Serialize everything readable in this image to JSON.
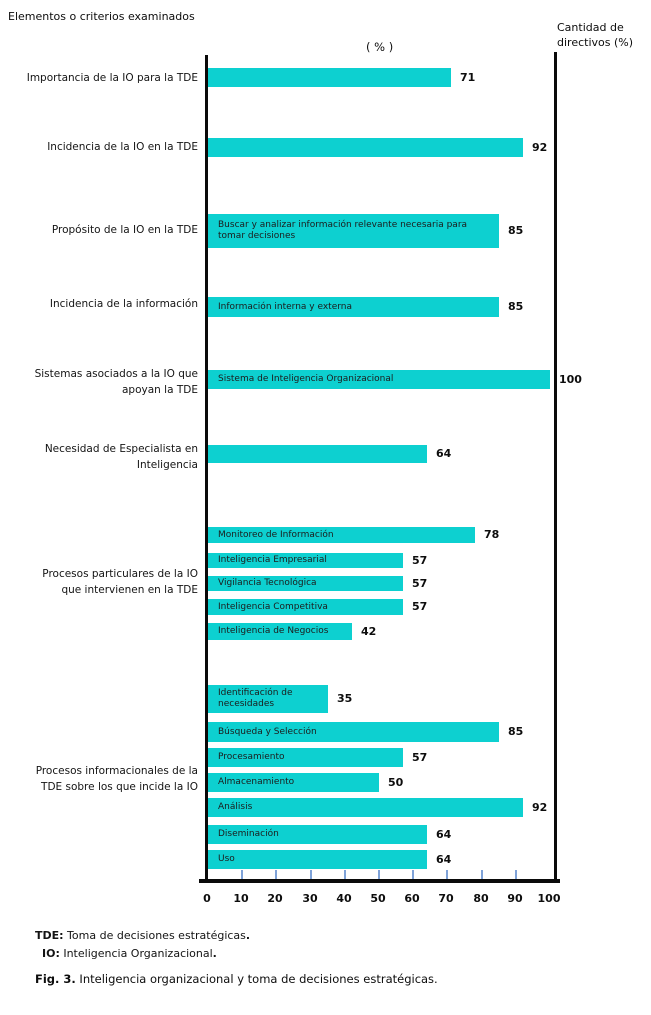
{
  "header": {
    "left_title": "Elementos o criterios examinados",
    "axis_unit_label": "( % )",
    "right_title": "Cantidad de\ndirectivos (%)"
  },
  "chart_data": {
    "type": "bar",
    "orientation": "horizontal",
    "value_unit": "%",
    "xlim": [
      0,
      100
    ],
    "x_ticks": [
      0,
      10,
      20,
      30,
      40,
      50,
      60,
      70,
      80,
      90,
      100
    ],
    "bar_color": "#0dd0d0",
    "tick_color": "#7fa3d9",
    "legend": "none",
    "grid": "off",
    "groups": [
      {
        "label_lines": [
          "Importancia de la IO para la TDE"
        ],
        "bars": [
          {
            "bar_label": "",
            "value": 71
          }
        ]
      },
      {
        "label_lines": [
          "Incidencia de la IO en la TDE"
        ],
        "bars": [
          {
            "bar_label": "",
            "value": 92
          }
        ]
      },
      {
        "label_lines": [
          "Propósito de la IO en la TDE"
        ],
        "bars": [
          {
            "bar_label": "Buscar y analizar información relevante necesaria para tomar decisiones",
            "value": 85
          }
        ]
      },
      {
        "label_lines": [
          "Incidencia de la información"
        ],
        "bars": [
          {
            "bar_label": "Información interna y externa",
            "value": 85
          }
        ]
      },
      {
        "label_lines": [
          "Sistemas asociados a la IO que",
          "apoyan la TDE"
        ],
        "bars": [
          {
            "bar_label": "Sistema de Inteligencia Organizacional",
            "value": 100
          }
        ]
      },
      {
        "label_lines": [
          "Necesidad de Especialista en",
          "Inteligencia"
        ],
        "bars": [
          {
            "bar_label": "",
            "value": 64
          }
        ]
      },
      {
        "label_lines": [
          "Procesos particulares de la IO",
          "que intervienen en la TDE"
        ],
        "bars": [
          {
            "bar_label": "Monitoreo de Información",
            "value": 78
          },
          {
            "bar_label": "Inteligencia Empresarial",
            "value": 57
          },
          {
            "bar_label": "Vigilancia Tecnológica",
            "value": 57
          },
          {
            "bar_label": "Inteligencia Competitiva",
            "value": 57
          },
          {
            "bar_label": "Inteligencia de Negocios",
            "value": 42
          }
        ]
      },
      {
        "label_lines": [
          "Procesos informacionales de la",
          "TDE sobre los que incide la IO"
        ],
        "bars": [
          {
            "bar_label": "Identificación de necesidades",
            "value": 35
          },
          {
            "bar_label": "Búsqueda y Selección",
            "value": 85
          },
          {
            "bar_label": "Procesamiento",
            "value": 57
          },
          {
            "bar_label": "Almacenamiento",
            "value": 50
          },
          {
            "bar_label": "Análisis",
            "value": 92
          },
          {
            "bar_label": "Diseminación",
            "value": 64
          },
          {
            "bar_label": "Uso",
            "value": 64
          }
        ]
      }
    ]
  },
  "footnotes": [
    {
      "term": "TDE:",
      "definition": " Toma de decisiones estratégicas",
      "period": "."
    },
    {
      "term": "IO:",
      "definition": " Inteligencia Organizacional",
      "period": "."
    }
  ],
  "caption": {
    "prefix": "Fig. 3.",
    "text": " Inteligencia organizacional y toma de decisiones estratégicas."
  }
}
